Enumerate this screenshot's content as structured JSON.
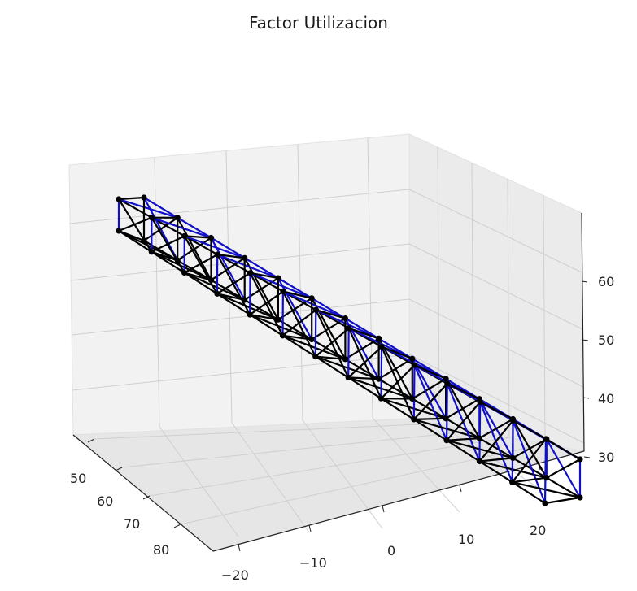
{
  "chart_data": {
    "type": "3d-line",
    "title": "Factor Utilizacion",
    "axes": {
      "x": {
        "ticks": [
          "50",
          "60",
          "70",
          "80"
        ]
      },
      "y": {
        "ticks": [
          "−20",
          "−10",
          "0",
          "10",
          "20"
        ]
      },
      "z": {
        "ticks": [
          "30",
          "40",
          "50",
          "60"
        ]
      }
    },
    "grid": true,
    "structure": "space-truss",
    "truss_panels": 13,
    "series": [
      {
        "color": "#000000",
        "label": ""
      },
      {
        "color": "#1010c8",
        "label": ""
      }
    ]
  }
}
